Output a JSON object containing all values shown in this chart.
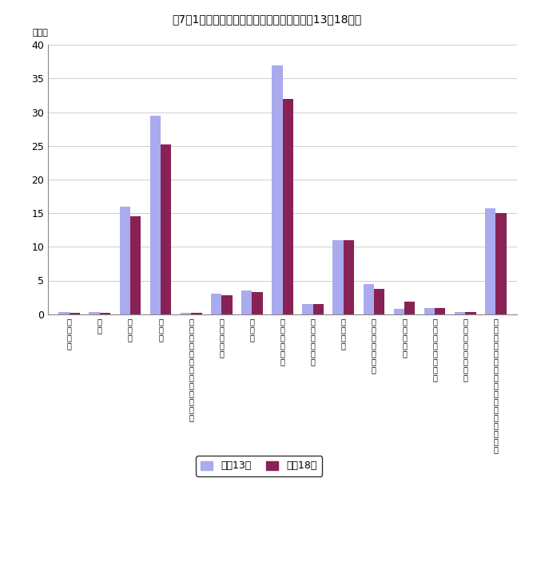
{
  "title": "図7－1　企業産業（大分類）別企業数（平成13，18年）",
  "ylabel": "千企業",
  "ylim": [
    0,
    40
  ],
  "yticks": [
    0,
    5,
    10,
    15,
    20,
    25,
    30,
    35,
    40
  ],
  "categories": [
    "農\n林\n漁\n業",
    "鉱\n業",
    "建\n設\n業",
    "製\n造\n業",
    "電\n気\n・\nガ\nス\n・\n熱\n供\n給\n・\n水\n道\n業",
    "情\n報\n通\n信\n業",
    "運\n輸\n業",
    "卸\n売\n・\n小\n売\n業",
    "金\n融\n・\n保\n険\n業",
    "不\n動\n産\n業",
    "飲\n食\n店\n，\n宿\n泊\n業",
    "医\n療\n，\n福\n祉",
    "教\n育\n，\n学\n習\n支\n援\n業",
    "複\n合\nサ\nー\nビ\nス\n事\n業",
    "サ\nー\nビ\nス\n業\n（\n他\nに\n分\n類\nさ\nれ\nな\nい\nも\nの\n）"
  ],
  "values_2001": [
    0.3,
    0.3,
    16.0,
    29.5,
    0.2,
    3.0,
    3.5,
    37.0,
    1.5,
    11.0,
    4.5,
    0.8,
    0.9,
    0.3,
    15.7
  ],
  "values_2006": [
    0.2,
    0.2,
    14.5,
    25.2,
    0.2,
    2.8,
    3.3,
    32.0,
    1.5,
    11.0,
    3.8,
    1.8,
    0.9,
    0.3,
    15.0
  ],
  "color_2001": "#aaaaee",
  "color_2006": "#882255",
  "legend_2001": "平成13年",
  "legend_2006": "平成18年",
  "background_color": "#ffffff",
  "grid_color": "#bbbbbb"
}
